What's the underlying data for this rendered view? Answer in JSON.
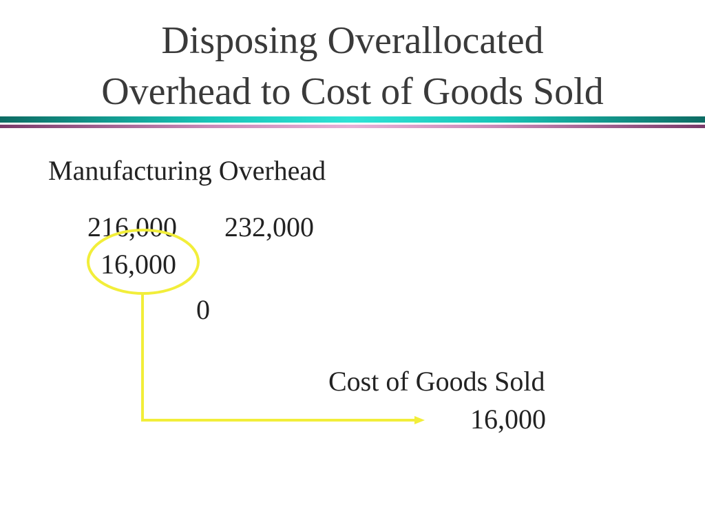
{
  "slide": {
    "title_line1": "Disposing Overallocated",
    "title_line2": "Overhead to Cost of Goods Sold"
  },
  "manufacturing_overhead": {
    "title": "Manufacturing Overhead",
    "debit": "216,000",
    "credit": "232,000",
    "adjustment": "16,000",
    "ending_balance": "0"
  },
  "cost_of_goods_sold": {
    "title": "Cost of Goods Sold",
    "debit": "16,000"
  },
  "colors": {
    "highlight": "#f2ee3a",
    "divider_teal": "#18c6b8",
    "divider_pink": "#c98ab8"
  }
}
